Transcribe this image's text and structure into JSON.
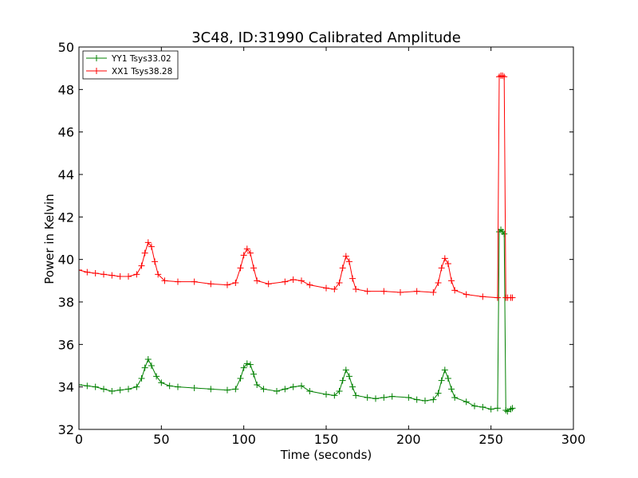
{
  "chart_data": {
    "type": "line",
    "title": "3C48, ID:31990 Calibrated Amplitude",
    "xlabel": "Time (seconds)",
    "ylabel": "Power in Kelvin",
    "xlim": [
      0,
      300
    ],
    "ylim": [
      32,
      50
    ],
    "xticks": [
      0,
      50,
      100,
      150,
      200,
      250,
      300
    ],
    "yticks": [
      32,
      34,
      36,
      38,
      40,
      42,
      44,
      46,
      48,
      50
    ],
    "grid": false,
    "legend_position": "top-left",
    "marker": "plus",
    "series": [
      {
        "name": "YY1 Tsys33.02",
        "color": "#008000",
        "points": [
          [
            0,
            34.1
          ],
          [
            5,
            34.05
          ],
          [
            10,
            34.0
          ],
          [
            15,
            33.9
          ],
          [
            20,
            33.8
          ],
          [
            25,
            33.85
          ],
          [
            30,
            33.9
          ],
          [
            35,
            34.0
          ],
          [
            38,
            34.4
          ],
          [
            40,
            34.9
          ],
          [
            42,
            35.3
          ],
          [
            44,
            35.0
          ],
          [
            47,
            34.5
          ],
          [
            50,
            34.2
          ],
          [
            55,
            34.05
          ],
          [
            60,
            34.0
          ],
          [
            70,
            33.95
          ],
          [
            80,
            33.9
          ],
          [
            90,
            33.85
          ],
          [
            95,
            33.9
          ],
          [
            98,
            34.4
          ],
          [
            100,
            34.9
          ],
          [
            102,
            35.1
          ],
          [
            104,
            35.05
          ],
          [
            106,
            34.6
          ],
          [
            108,
            34.1
          ],
          [
            112,
            33.9
          ],
          [
            120,
            33.8
          ],
          [
            125,
            33.9
          ],
          [
            130,
            34.0
          ],
          [
            135,
            34.05
          ],
          [
            140,
            33.8
          ],
          [
            150,
            33.65
          ],
          [
            155,
            33.6
          ],
          [
            158,
            33.8
          ],
          [
            160,
            34.3
          ],
          [
            162,
            34.8
          ],
          [
            164,
            34.5
          ],
          [
            166,
            34.0
          ],
          [
            168,
            33.6
          ],
          [
            175,
            33.5
          ],
          [
            180,
            33.45
          ],
          [
            185,
            33.5
          ],
          [
            190,
            33.55
          ],
          [
            200,
            33.5
          ],
          [
            205,
            33.4
          ],
          [
            210,
            33.35
          ],
          [
            215,
            33.4
          ],
          [
            218,
            33.7
          ],
          [
            220,
            34.3
          ],
          [
            222,
            34.8
          ],
          [
            224,
            34.4
          ],
          [
            226,
            33.9
          ],
          [
            228,
            33.5
          ],
          [
            235,
            33.3
          ],
          [
            240,
            33.1
          ],
          [
            245,
            33.05
          ],
          [
            250,
            32.95
          ],
          [
            254,
            33.0
          ],
          [
            255,
            41.3
          ],
          [
            256,
            41.4
          ],
          [
            257,
            41.3
          ],
          [
            258,
            41.2
          ],
          [
            259,
            32.9
          ],
          [
            260,
            32.85
          ],
          [
            262,
            32.95
          ],
          [
            263,
            33.0
          ]
        ]
      },
      {
        "name": "XX1 Tsys38.28",
        "color": "#ff0000",
        "points": [
          [
            0,
            39.5
          ],
          [
            5,
            39.4
          ],
          [
            10,
            39.35
          ],
          [
            15,
            39.3
          ],
          [
            20,
            39.25
          ],
          [
            25,
            39.2
          ],
          [
            30,
            39.2
          ],
          [
            35,
            39.3
          ],
          [
            38,
            39.7
          ],
          [
            40,
            40.3
          ],
          [
            42,
            40.8
          ],
          [
            44,
            40.6
          ],
          [
            46,
            39.9
          ],
          [
            48,
            39.3
          ],
          [
            52,
            39.0
          ],
          [
            60,
            38.95
          ],
          [
            70,
            38.95
          ],
          [
            80,
            38.85
          ],
          [
            90,
            38.8
          ],
          [
            95,
            38.9
          ],
          [
            98,
            39.6
          ],
          [
            100,
            40.2
          ],
          [
            102,
            40.5
          ],
          [
            104,
            40.3
          ],
          [
            106,
            39.6
          ],
          [
            108,
            39.0
          ],
          [
            115,
            38.85
          ],
          [
            125,
            38.95
          ],
          [
            130,
            39.05
          ],
          [
            135,
            39.0
          ],
          [
            140,
            38.8
          ],
          [
            150,
            38.65
          ],
          [
            155,
            38.6
          ],
          [
            158,
            38.9
          ],
          [
            160,
            39.6
          ],
          [
            162,
            40.15
          ],
          [
            164,
            39.9
          ],
          [
            166,
            39.1
          ],
          [
            168,
            38.6
          ],
          [
            175,
            38.5
          ],
          [
            185,
            38.5
          ],
          [
            195,
            38.45
          ],
          [
            205,
            38.5
          ],
          [
            215,
            38.45
          ],
          [
            218,
            38.9
          ],
          [
            220,
            39.6
          ],
          [
            222,
            40.05
          ],
          [
            224,
            39.8
          ],
          [
            226,
            39.0
          ],
          [
            228,
            38.55
          ],
          [
            235,
            38.35
          ],
          [
            245,
            38.25
          ],
          [
            254,
            38.2
          ],
          [
            255,
            48.6
          ],
          [
            256,
            48.65
          ],
          [
            257,
            48.65
          ],
          [
            258,
            48.6
          ],
          [
            259,
            38.2
          ],
          [
            260,
            38.2
          ],
          [
            262,
            38.2
          ],
          [
            263,
            38.2
          ]
        ]
      }
    ]
  }
}
